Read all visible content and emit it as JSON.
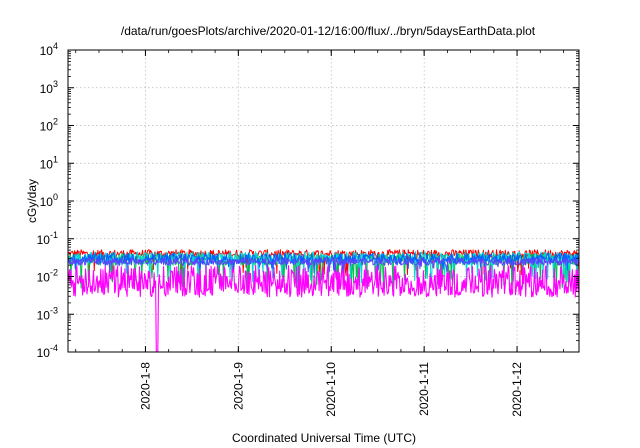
{
  "chart_data": {
    "type": "line",
    "title": "/data/run/goesPlots/archive/2020-01-12/16:00/flux/../bryn/5daysEarthData.plot",
    "xlabel": "Coordinated Universal Time (UTC)",
    "ylabel": "cGy/day",
    "yscale": "log",
    "ylim": [
      0.0001,
      10000
    ],
    "xlim": [
      "2020-01-07T04:00",
      "2020-01-12T16:00"
    ],
    "x_ticks": [
      "2020-1-8",
      "2020-1-9",
      "2020-1-10",
      "2020-1-11",
      "2020-1-12"
    ],
    "y_ticks": [
      {
        "base": "10",
        "exp": "-4"
      },
      {
        "base": "10",
        "exp": "-3"
      },
      {
        "base": "10",
        "exp": "-2"
      },
      {
        "base": "10",
        "exp": "-1"
      },
      {
        "base": "10",
        "exp": "0"
      },
      {
        "base": "10",
        "exp": "1"
      },
      {
        "base": "10",
        "exp": "2"
      },
      {
        "base": "10",
        "exp": "3"
      },
      {
        "base": "10",
        "exp": "4"
      }
    ],
    "grid": true,
    "legend": "none",
    "series": [
      {
        "color": "#ff0000",
        "base": 0.04,
        "spread": 0.22,
        "dip_to": 0.012,
        "dip_rate": 0.04
      },
      {
        "color": "#00c050",
        "base": 0.028,
        "spread": 0.3,
        "dip_to": 0.006,
        "dip_rate": 0.1
      },
      {
        "color": "#00d8d8",
        "base": 0.032,
        "spread": 0.3,
        "dip_to": 0.008,
        "dip_rate": 0.09
      },
      {
        "color": "#ff00ff",
        "base": 0.011,
        "spread": 0.5,
        "dip_to": 0.0035,
        "dip_rate": 0.45
      },
      {
        "color": "#0060ff",
        "base": 0.03,
        "spread": 0.28,
        "dip_to": 0.018,
        "dip_rate": 0.05
      },
      {
        "color": "#6040ff",
        "base": 0.025,
        "spread": 0.2,
        "dip_to": 0.015,
        "dip_rate": 0.04
      }
    ],
    "spike_min": {
      "series": 3,
      "at": "2020-01-08T03:00",
      "value": 0.0001
    }
  }
}
